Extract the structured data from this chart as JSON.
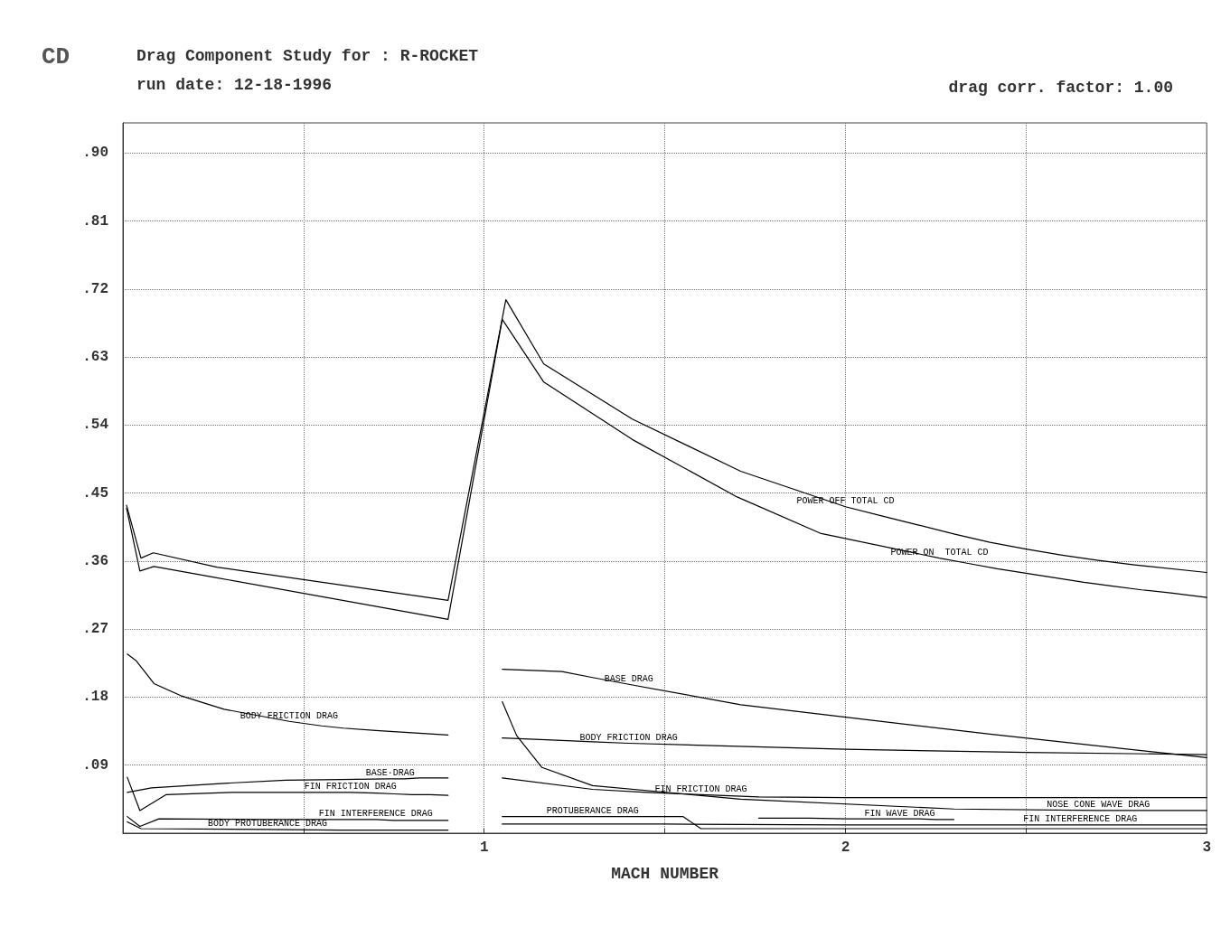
{
  "chart_data": {
    "type": "line",
    "title": "Drag Component Study for : R-ROCKET",
    "subtitle": "run date: 12-18-1996",
    "annotations": [
      "drag corr. factor: 1.00"
    ],
    "ylabel": "CD",
    "xlabel": "MACH NUMBER",
    "xlim": [
      0,
      3
    ],
    "ylim": [
      0,
      0.94
    ],
    "xticks": [
      {
        "value": 0,
        "label": null
      },
      {
        "value": 0.5,
        "label": null
      },
      1,
      {
        "value": 1.5,
        "label": null
      },
      2,
      {
        "value": 2.5,
        "label": null
      },
      3
    ],
    "yticks": [
      {
        "value": 0.09,
        "label": ".09"
      },
      {
        "value": 0.18,
        "label": ".18"
      },
      {
        "value": 0.27,
        "label": ".27"
      },
      {
        "value": 0.36,
        "label": ".36"
      },
      {
        "value": 0.45,
        "label": ".45"
      },
      {
        "value": 0.54,
        "label": ".54"
      },
      {
        "value": 0.63,
        "label": ".63"
      },
      {
        "value": 0.72,
        "label": ".72"
      },
      {
        "value": 0.81,
        "label": ".81"
      },
      {
        "value": 0.9,
        "label": ".90"
      }
    ],
    "grid": true,
    "legend": false,
    "marker": "none",
    "line_style": "solid",
    "series": [
      {
        "name": "POWER OFF TOTAL CD",
        "color": "#000000",
        "x": [
          0.01,
          0.05,
          0.084,
          0.26,
          0.9,
          1.06,
          1.165,
          1.41,
          1.71,
          2.0,
          2.1,
          2.2,
          2.3,
          2.4,
          2.5,
          2.6,
          2.7,
          2.8,
          3.0
        ],
        "values": [
          0.434,
          0.364,
          0.371,
          0.352,
          0.308,
          0.706,
          0.621,
          0.548,
          0.479,
          0.432,
          0.42,
          0.408,
          0.396,
          0.385,
          0.376,
          0.368,
          0.361,
          0.355,
          0.345
        ]
      },
      {
        "name": "POWER ON  TOTAL CD",
        "color": "#000000",
        "x": [
          0.01,
          0.047,
          0.086,
          0.26,
          0.9,
          1.05,
          1.165,
          1.41,
          1.7,
          1.93,
          2.26,
          2.34,
          2.42,
          2.5,
          2.58,
          2.66,
          2.74,
          2.82,
          2.9,
          2.95,
          3.0
        ],
        "values": [
          0.43,
          0.347,
          0.353,
          0.338,
          0.283,
          0.68,
          0.597,
          0.521,
          0.445,
          0.397,
          0.364,
          0.357,
          0.35,
          0.344,
          0.338,
          0.332,
          0.327,
          0.322,
          0.318,
          0.315,
          0.312
        ]
      },
      {
        "name": "BODY FRICTION DRAG",
        "color": "#000000",
        "x": [
          0.012,
          0.037,
          0.086,
          0.16,
          0.28,
          0.46,
          0.55,
          0.61,
          0.7,
          0.8,
          0.9
        ],
        "values": [
          0.237,
          0.228,
          0.198,
          0.182,
          0.164,
          0.148,
          0.142,
          0.139,
          0.136,
          0.133,
          0.13
        ]
      },
      {
        "name": "BASE·DRAG",
        "color": "#000000",
        "x": [
          0.012,
          0.079,
          0.28,
          0.45,
          0.6,
          0.74,
          0.78,
          0.82,
          0.86,
          0.88,
          0.9
        ],
        "values": [
          0.054,
          0.06,
          0.066,
          0.07,
          0.071,
          0.072,
          0.072,
          0.073,
          0.073,
          0.073,
          0.073
        ]
      },
      {
        "name": "FIN FRICTION DRAG",
        "color": "#000000",
        "x": [
          0.012,
          0.047,
          0.12,
          0.3,
          0.45,
          0.63,
          0.7,
          0.75,
          0.8,
          0.85,
          0.9
        ],
        "values": [
          0.074,
          0.03,
          0.051,
          0.054,
          0.054,
          0.054,
          0.053,
          0.052,
          0.051,
          0.051,
          0.05
        ]
      },
      {
        "name": "FIN INTERFERENCE DRAG",
        "color": "#000000",
        "x": [
          0.012,
          0.047,
          0.1,
          0.4,
          0.7,
          0.75,
          0.8,
          0.85,
          0.9
        ],
        "values": [
          0.022,
          0.009,
          0.019,
          0.018,
          0.018,
          0.017,
          0.017,
          0.017,
          0.017
        ]
      },
      {
        "name": "BODY PROTUBERANCE DRAG",
        "color": "#000000",
        "x": [
          0.012,
          0.05,
          0.4,
          0.6,
          0.9
        ],
        "values": [
          0.015,
          0.006,
          0.005,
          0.004,
          0.004
        ]
      },
      {
        "name": "BASE DRAG",
        "color": "#000000",
        "x": [
          1.05,
          1.215,
          1.3,
          1.4,
          1.71,
          2.4,
          3.0
        ],
        "values": [
          0.217,
          0.214,
          0.206,
          0.197,
          0.17,
          0.131,
          0.1
        ]
      },
      {
        "name": "BODY FRICTION DRAG",
        "color": "#000000",
        "x": [
          1.05,
          1.2,
          1.3,
          1.4,
          2.0,
          2.5,
          3.0
        ],
        "values": [
          0.126,
          0.123,
          0.121,
          0.119,
          0.111,
          0.107,
          0.104
        ]
      },
      {
        "name": "FIN FRICTION DRAG",
        "color": "#000000",
        "x": [
          1.05,
          1.3,
          1.45,
          1.6,
          1.76,
          2.0,
          3.0
        ],
        "values": [
          0.073,
          0.058,
          0.054,
          0.051,
          0.048,
          0.047,
          0.047
        ]
      },
      {
        "name": "NOSE CONE WAVE DRAG",
        "color": "#000000",
        "x": [
          1.05,
          1.09,
          1.16,
          1.3,
          1.71,
          2.3,
          2.7,
          2.75,
          2.8,
          2.85,
          2.9,
          2.95,
          3.0
        ],
        "values": [
          0.174,
          0.129,
          0.087,
          0.063,
          0.045,
          0.032,
          0.03,
          0.03,
          0.03,
          0.03,
          0.03,
          0.03,
          0.03
        ]
      },
      {
        "name": "FIN WAVE DRAG",
        "color": "#000000",
        "x": [
          1.76,
          1.9,
          2.0,
          2.15,
          2.2,
          2.25,
          2.3
        ],
        "values": [
          0.02,
          0.02,
          0.019,
          0.019,
          0.019,
          0.018,
          0.018
        ]
      },
      {
        "name": "FIN INTERFERENCE DRAG",
        "color": "#000000",
        "x": [
          1.05,
          1.5,
          2.0,
          2.65,
          2.8,
          2.9,
          3.0
        ],
        "values": [
          0.012,
          0.012,
          0.011,
          0.011,
          0.011,
          0.011,
          0.011
        ]
      },
      {
        "name": "PROTUBERANCE DRAG",
        "color": "#000000",
        "x": [
          1.05,
          1.1,
          1.2,
          1.3,
          1.55,
          1.6,
          3.0
        ],
        "values": [
          0.022,
          0.022,
          0.022,
          0.022,
          0.022,
          0.006,
          0.006
        ]
      }
    ]
  }
}
